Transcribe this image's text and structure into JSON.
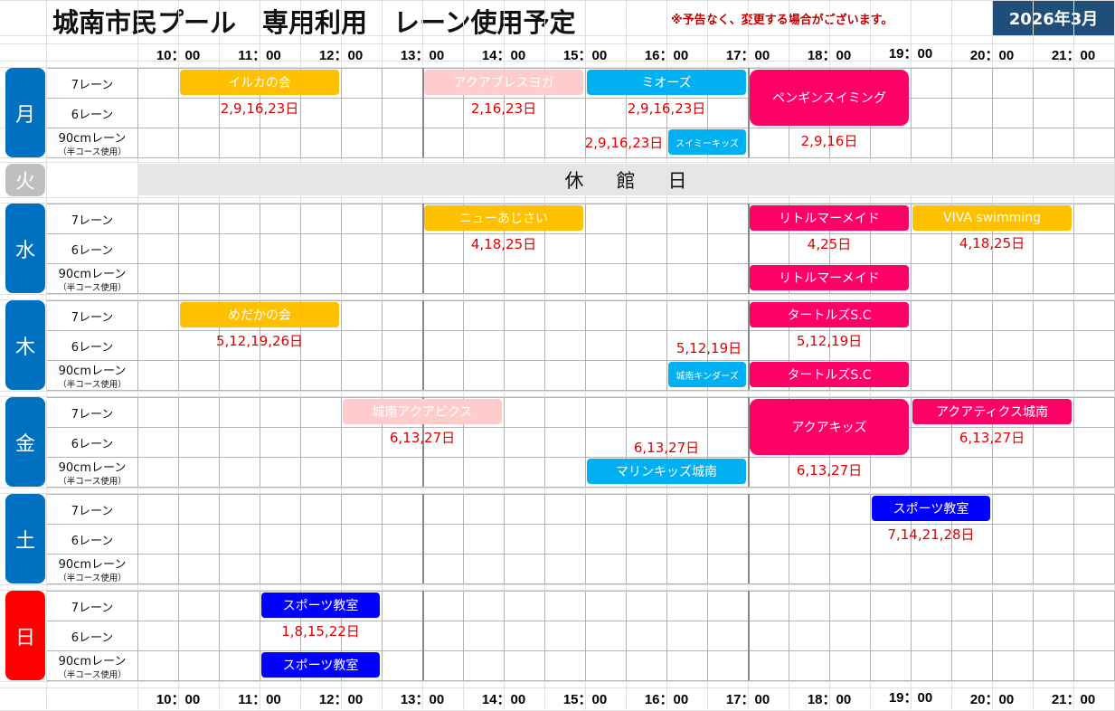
{
  "header": {
    "title": "城南市民プール　専用利用　レーン使用予定",
    "notice": "※予告なく、変更する場合がございます。",
    "month": "2026年3月"
  },
  "time_labels": [
    "10：00",
    "11：00",
    "12：00",
    "13：00",
    "14：00",
    "15：00",
    "16：00",
    "17：00",
    "18：00",
    "19：00",
    "20：00",
    "21：00"
  ],
  "lane_labels": {
    "lane7": "7レーン",
    "lane6": "6レーン",
    "lane90": "90cmレーン",
    "lane90_note": "（半コース使用）"
  },
  "days": [
    {
      "key": "mon",
      "label": "月",
      "color": "#0070c0"
    },
    {
      "key": "tue",
      "label": "火",
      "color": "#bfbfbf"
    },
    {
      "key": "wed",
      "label": "水",
      "color": "#0070c0"
    },
    {
      "key": "thu",
      "label": "木",
      "color": "#0070c0"
    },
    {
      "key": "fri",
      "label": "金",
      "color": "#0070c0"
    },
    {
      "key": "sat",
      "label": "土",
      "color": "#0070c0"
    },
    {
      "key": "sun",
      "label": "日",
      "color": "#ff0000"
    }
  ],
  "closed_day": {
    "chars": [
      "休",
      "館",
      "日"
    ]
  },
  "colors": {
    "orange": "#ffc000",
    "pink": "#ffcccc",
    "cyan": "#00b0f0",
    "magenta": "#ff0066",
    "blue": "#0000ff",
    "date_red": "#e00000"
  },
  "events": [
    {
      "day": "mon",
      "lane": "7",
      "name": "イルカの会",
      "color": "#ffc000",
      "start": "10:00",
      "end": "12:00",
      "dates": "2,9,16,23日"
    },
    {
      "day": "mon",
      "lane": "7",
      "name": "アクアブレスヨガ",
      "color": "#ffcccc",
      "start": "13:00",
      "end": "15:00",
      "dates": "2,16,23日"
    },
    {
      "day": "mon",
      "lane": "7",
      "name": "ミオーズ",
      "color": "#00b0f0",
      "start": "15:00",
      "end": "17:00",
      "dates": "2,9,16,23日"
    },
    {
      "day": "mon",
      "lane": "7-6",
      "name": "ペンギンスイミング",
      "color": "#ff0066",
      "start": "17:00",
      "end": "19:00",
      "dates": "2,9,16日"
    },
    {
      "day": "mon",
      "lane": "90",
      "name": "スイミーキッズ",
      "color": "#00b0f0",
      "start": "16:00",
      "end": "17:00",
      "dates": "2,9,16,23日"
    },
    {
      "day": "wed",
      "lane": "7",
      "name": "ニューあじさい",
      "color": "#ffc000",
      "start": "13:00",
      "end": "15:00",
      "dates": "4,18,25日"
    },
    {
      "day": "wed",
      "lane": "7",
      "name": "リトルマーメイド",
      "color": "#ff0066",
      "start": "17:00",
      "end": "19:00",
      "dates": "4,25日"
    },
    {
      "day": "wed",
      "lane": "7",
      "name": "VIVA swimming",
      "color": "#ffc000",
      "start": "19:00",
      "end": "21:00",
      "dates": "4,18,25日"
    },
    {
      "day": "wed",
      "lane": "90",
      "name": "リトルマーメイド",
      "color": "#ff0066",
      "start": "17:00",
      "end": "19:00",
      "dates": ""
    },
    {
      "day": "thu",
      "lane": "7",
      "name": "めだかの会",
      "color": "#ffc000",
      "start": "10:00",
      "end": "12:00",
      "dates": "5,12,19,26日"
    },
    {
      "day": "thu",
      "lane": "7",
      "name": "タートルズS.C",
      "color": "#ff0066",
      "start": "17:00",
      "end": "19:00",
      "dates": "5,12,19日"
    },
    {
      "day": "thu",
      "lane": "90",
      "name": "城南キンダーズ",
      "color": "#00b0f0",
      "start": "16:00",
      "end": "17:00",
      "dates": "5,12,19日"
    },
    {
      "day": "thu",
      "lane": "90",
      "name": "タートルズS.C",
      "color": "#ff0066",
      "start": "17:00",
      "end": "19:00",
      "dates": ""
    },
    {
      "day": "fri",
      "lane": "7",
      "name": "城南アクアビクス",
      "color": "#ffcccc",
      "start": "12:00",
      "end": "14:00",
      "dates": "6,13,27日"
    },
    {
      "day": "fri",
      "lane": "7-6",
      "name": "アクアキッズ",
      "color": "#ff0066",
      "start": "17:00",
      "end": "19:00",
      "dates": "6,13,27日"
    },
    {
      "day": "fri",
      "lane": "7",
      "name": "アクアティクス城南",
      "color": "#ff0066",
      "start": "19:00",
      "end": "21:00",
      "dates": "6,13,27日"
    },
    {
      "day": "fri",
      "lane": "90",
      "name": "マリンキッズ城南",
      "color": "#00b0f0",
      "start": "15:00",
      "end": "17:00",
      "dates": "6,13,27日"
    },
    {
      "day": "sat",
      "lane": "7",
      "name": "スポーツ教室",
      "color": "#0000ff",
      "start": "18:30",
      "end": "20:00",
      "dates": "7,14,21,28日"
    },
    {
      "day": "sun",
      "lane": "7",
      "name": "スポーツ教室",
      "color": "#0000ff",
      "start": "11:00",
      "end": "12:30",
      "dates": "1,8,15,22日"
    },
    {
      "day": "sun",
      "lane": "90",
      "name": "スポーツ教室",
      "color": "#0000ff",
      "start": "11:00",
      "end": "12:30",
      "dates": ""
    }
  ]
}
